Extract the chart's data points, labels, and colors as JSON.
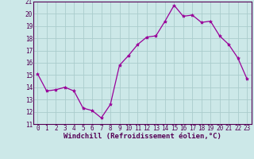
{
  "x": [
    0,
    1,
    2,
    3,
    4,
    5,
    6,
    7,
    8,
    9,
    10,
    11,
    12,
    13,
    14,
    15,
    16,
    17,
    18,
    19,
    20,
    21,
    22,
    23
  ],
  "y": [
    15.1,
    13.7,
    13.8,
    14.0,
    13.7,
    12.3,
    12.1,
    11.5,
    12.6,
    15.8,
    16.6,
    17.5,
    18.1,
    18.2,
    19.4,
    20.7,
    19.8,
    19.9,
    19.3,
    19.4,
    18.2,
    17.5,
    16.4,
    14.7
  ],
  "line_color": "#990099",
  "marker": "*",
  "marker_size": 3,
  "bg_color": "#cce8e8",
  "grid_color": "#aacccc",
  "xlabel": "Windchill (Refroidissement éolien,°C)",
  "xlabel_fontsize": 6.5,
  "yticks": [
    11,
    12,
    13,
    14,
    15,
    16,
    17,
    18,
    19,
    20,
    21
  ],
  "xticks": [
    0,
    1,
    2,
    3,
    4,
    5,
    6,
    7,
    8,
    9,
    10,
    11,
    12,
    13,
    14,
    15,
    16,
    17,
    18,
    19,
    20,
    21,
    22,
    23
  ],
  "ylim": [
    11,
    21
  ],
  "xlim": [
    -0.5,
    23.5
  ],
  "tick_label_fontsize": 5.5,
  "axis_label_color": "#550055",
  "tick_color": "#550055",
  "spine_color": "#550055",
  "xlabel_color": "#550055"
}
